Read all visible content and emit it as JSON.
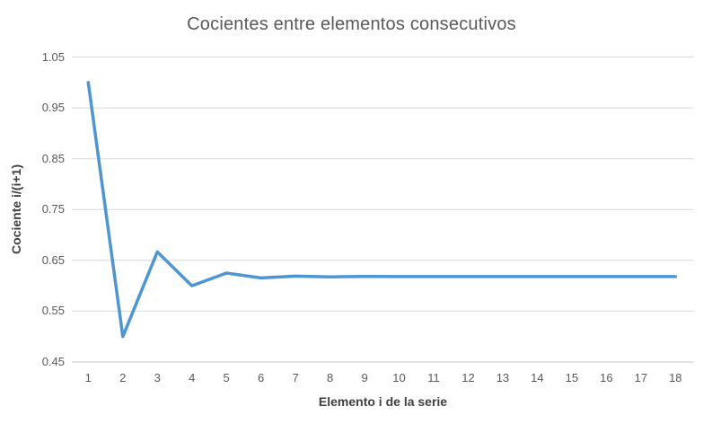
{
  "chart_data": {
    "type": "line",
    "title": "Cocientes entre elementos consecutivos",
    "xlabel": "Elemento i de la serie",
    "ylabel": "Cociente i/(i+1)",
    "categories": [
      1,
      2,
      3,
      4,
      5,
      6,
      7,
      8,
      9,
      10,
      11,
      12,
      13,
      14,
      15,
      16,
      17,
      18
    ],
    "values": [
      1.0,
      0.5,
      0.6667,
      0.6,
      0.625,
      0.6154,
      0.619,
      0.6176,
      0.6182,
      0.618,
      0.6181,
      0.618,
      0.618,
      0.618,
      0.618,
      0.618,
      0.618,
      0.618
    ],
    "ylim": [
      0.45,
      1.05
    ],
    "ytick_step": 0.1,
    "ytick_labels": [
      "1.05",
      "0.95",
      "0.85",
      "0.75",
      "0.65",
      "0.55",
      "0.45"
    ],
    "grid": "horizontal",
    "legend": "none",
    "colors": {
      "line": "#4e96d3",
      "gridline": "#d9d9d9",
      "axis_line": "#c6c6c6",
      "title_text": "#595959",
      "tick_text": "#595959",
      "axis_title_text": "#3f3f3f",
      "background": "#ffffff"
    }
  }
}
